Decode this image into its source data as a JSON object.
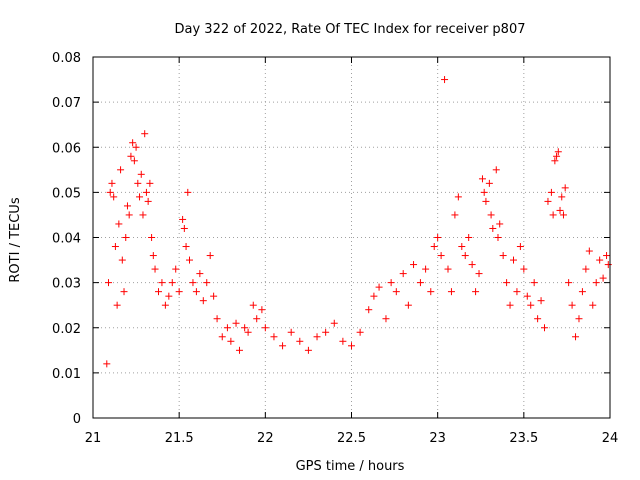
{
  "chart_data": {
    "type": "scatter",
    "title": "Day 322 of 2022, Rate Of TEC Index for receiver p807",
    "xlabel": "GPS time / hours",
    "ylabel": "ROTI / TECUs",
    "xlim": [
      21,
      24
    ],
    "ylim": [
      0,
      0.08
    ],
    "grid": true,
    "x_ticks": [
      21,
      21.5,
      22,
      22.5,
      23,
      23.5,
      24
    ],
    "x_tick_labels": [
      "21",
      "21.5",
      "22",
      "22.5",
      "23",
      "23.5",
      "24"
    ],
    "y_ticks": [
      0,
      0.01,
      0.02,
      0.03,
      0.04,
      0.05,
      0.06,
      0.07,
      0.08
    ],
    "y_tick_labels": [
      "0",
      "0.01",
      "0.02",
      "0.03",
      "0.04",
      "0.05",
      "0.06",
      "0.07",
      "0.08"
    ],
    "marker": "+",
    "colors": {
      "points": "#ff0000",
      "grid": "#a0a0a0",
      "axes": "#000000"
    },
    "series": [
      {
        "name": "ROTI",
        "points": [
          [
            21.08,
            0.012
          ],
          [
            21.09,
            0.03
          ],
          [
            21.1,
            0.05
          ],
          [
            21.11,
            0.052
          ],
          [
            21.12,
            0.049
          ],
          [
            21.13,
            0.038
          ],
          [
            21.14,
            0.025
          ],
          [
            21.15,
            0.043
          ],
          [
            21.16,
            0.055
          ],
          [
            21.17,
            0.035
          ],
          [
            21.18,
            0.028
          ],
          [
            21.19,
            0.04
          ],
          [
            21.2,
            0.047
          ],
          [
            21.21,
            0.045
          ],
          [
            21.22,
            0.058
          ],
          [
            21.23,
            0.061
          ],
          [
            21.24,
            0.057
          ],
          [
            21.25,
            0.06
          ],
          [
            21.26,
            0.052
          ],
          [
            21.27,
            0.049
          ],
          [
            21.28,
            0.054
          ],
          [
            21.29,
            0.045
          ],
          [
            21.3,
            0.063
          ],
          [
            21.31,
            0.05
          ],
          [
            21.32,
            0.048
          ],
          [
            21.33,
            0.052
          ],
          [
            21.34,
            0.04
          ],
          [
            21.35,
            0.036
          ],
          [
            21.36,
            0.033
          ],
          [
            21.38,
            0.028
          ],
          [
            21.4,
            0.03
          ],
          [
            21.42,
            0.025
          ],
          [
            21.44,
            0.027
          ],
          [
            21.46,
            0.03
          ],
          [
            21.48,
            0.033
          ],
          [
            21.5,
            0.028
          ],
          [
            21.52,
            0.044
          ],
          [
            21.53,
            0.042
          ],
          [
            21.54,
            0.038
          ],
          [
            21.55,
            0.05
          ],
          [
            21.56,
            0.035
          ],
          [
            21.58,
            0.03
          ],
          [
            21.6,
            0.028
          ],
          [
            21.62,
            0.032
          ],
          [
            21.64,
            0.026
          ],
          [
            21.66,
            0.03
          ],
          [
            21.68,
            0.036
          ],
          [
            21.7,
            0.027
          ],
          [
            21.72,
            0.022
          ],
          [
            21.75,
            0.018
          ],
          [
            21.78,
            0.02
          ],
          [
            21.8,
            0.017
          ],
          [
            21.83,
            0.021
          ],
          [
            21.85,
            0.015
          ],
          [
            21.88,
            0.02
          ],
          [
            21.9,
            0.019
          ],
          [
            21.93,
            0.025
          ],
          [
            21.95,
            0.022
          ],
          [
            21.98,
            0.024
          ],
          [
            22.0,
            0.02
          ],
          [
            22.05,
            0.018
          ],
          [
            22.1,
            0.016
          ],
          [
            22.15,
            0.019
          ],
          [
            22.2,
            0.017
          ],
          [
            22.25,
            0.015
          ],
          [
            22.3,
            0.018
          ],
          [
            22.35,
            0.019
          ],
          [
            22.4,
            0.021
          ],
          [
            22.45,
            0.017
          ],
          [
            22.5,
            0.016
          ],
          [
            22.55,
            0.019
          ],
          [
            22.6,
            0.024
          ],
          [
            22.63,
            0.027
          ],
          [
            22.66,
            0.029
          ],
          [
            22.7,
            0.022
          ],
          [
            22.73,
            0.03
          ],
          [
            22.76,
            0.028
          ],
          [
            22.8,
            0.032
          ],
          [
            22.83,
            0.025
          ],
          [
            22.86,
            0.034
          ],
          [
            22.9,
            0.03
          ],
          [
            22.93,
            0.033
          ],
          [
            22.96,
            0.028
          ],
          [
            22.98,
            0.038
          ],
          [
            23.0,
            0.04
          ],
          [
            23.02,
            0.036
          ],
          [
            23.04,
            0.075
          ],
          [
            23.06,
            0.033
          ],
          [
            23.08,
            0.028
          ],
          [
            23.1,
            0.045
          ],
          [
            23.12,
            0.049
          ],
          [
            23.14,
            0.038
          ],
          [
            23.16,
            0.036
          ],
          [
            23.18,
            0.04
          ],
          [
            23.2,
            0.034
          ],
          [
            23.22,
            0.028
          ],
          [
            23.24,
            0.032
          ],
          [
            23.26,
            0.053
          ],
          [
            23.27,
            0.05
          ],
          [
            23.28,
            0.048
          ],
          [
            23.3,
            0.052
          ],
          [
            23.31,
            0.045
          ],
          [
            23.32,
            0.042
          ],
          [
            23.34,
            0.055
          ],
          [
            23.35,
            0.04
          ],
          [
            23.36,
            0.043
          ],
          [
            23.38,
            0.036
          ],
          [
            23.4,
            0.03
          ],
          [
            23.42,
            0.025
          ],
          [
            23.44,
            0.035
          ],
          [
            23.46,
            0.028
          ],
          [
            23.48,
            0.038
          ],
          [
            23.5,
            0.033
          ],
          [
            23.52,
            0.027
          ],
          [
            23.54,
            0.025
          ],
          [
            23.56,
            0.03
          ],
          [
            23.58,
            0.022
          ],
          [
            23.6,
            0.026
          ],
          [
            23.62,
            0.02
          ],
          [
            23.64,
            0.048
          ],
          [
            23.66,
            0.05
          ],
          [
            23.67,
            0.045
          ],
          [
            23.68,
            0.057
          ],
          [
            23.69,
            0.058
          ],
          [
            23.7,
            0.059
          ],
          [
            23.71,
            0.046
          ],
          [
            23.72,
            0.049
          ],
          [
            23.73,
            0.045
          ],
          [
            23.74,
            0.051
          ],
          [
            23.76,
            0.03
          ],
          [
            23.78,
            0.025
          ],
          [
            23.8,
            0.018
          ],
          [
            23.82,
            0.022
          ],
          [
            23.84,
            0.028
          ],
          [
            23.86,
            0.033
          ],
          [
            23.88,
            0.037
          ],
          [
            23.9,
            0.025
          ],
          [
            23.92,
            0.03
          ],
          [
            23.94,
            0.035
          ],
          [
            23.96,
            0.031
          ],
          [
            23.98,
            0.036
          ],
          [
            23.99,
            0.034
          ]
        ]
      }
    ]
  }
}
